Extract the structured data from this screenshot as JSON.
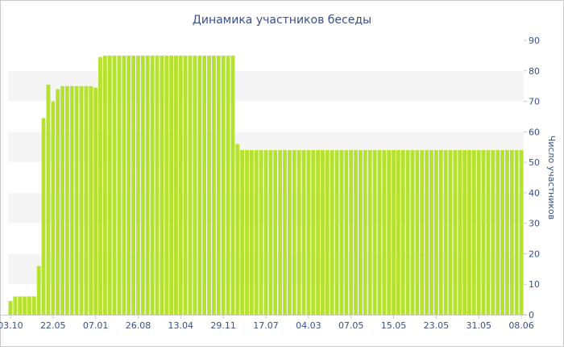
{
  "chart_data": {
    "type": "bar",
    "title": "Динамика участников беседы",
    "xlabel": "",
    "ylabel": "Число участников",
    "ylim": [
      0,
      90
    ],
    "y_ticks": [
      0,
      10,
      20,
      30,
      40,
      50,
      60,
      70,
      80,
      90
    ],
    "y_axis_position": "right",
    "grid": "alternating horizontal bands",
    "bar_color": "#b5e22e",
    "band_color": "#f5f5f5",
    "text_color": "#3a4f8a",
    "x_tick_labels": [
      {
        "index": 0,
        "label": "03.10"
      },
      {
        "index": 9,
        "label": "22.05"
      },
      {
        "index": 18,
        "label": "07.01"
      },
      {
        "index": 27,
        "label": "26.08"
      },
      {
        "index": 36,
        "label": "13.04"
      },
      {
        "index": 45,
        "label": "29.11"
      },
      {
        "index": 54,
        "label": "17.07"
      },
      {
        "index": 63,
        "label": "04.03"
      },
      {
        "index": 72,
        "label": "07.05"
      },
      {
        "index": 81,
        "label": "15.05"
      },
      {
        "index": 90,
        "label": "23.05"
      },
      {
        "index": 99,
        "label": "31.05"
      },
      {
        "index": 108,
        "label": "08.06"
      }
    ],
    "values": [
      4.5,
      6,
      6,
      6,
      6,
      6,
      16,
      64.5,
      75.5,
      70,
      74,
      75,
      75,
      75,
      75,
      75,
      75,
      75,
      74.5,
      84.5,
      85,
      85,
      85,
      85,
      85,
      85,
      85,
      85,
      85,
      85,
      85,
      85,
      85,
      85,
      85,
      85,
      85,
      85,
      85,
      85,
      85,
      85,
      85,
      85,
      85,
      85,
      85,
      85,
      56,
      54,
      54,
      54,
      54,
      54,
      54,
      54,
      54,
      54,
      54,
      54,
      54,
      54,
      54,
      54,
      54,
      54,
      54,
      54,
      54,
      54,
      54,
      54,
      54,
      54,
      54,
      54,
      54,
      54,
      54,
      54,
      54,
      54,
      54,
      54,
      54,
      54,
      54,
      54,
      54,
      54,
      54,
      54,
      54,
      54,
      54,
      54,
      54,
      54,
      54,
      54,
      54,
      54,
      54,
      54,
      54,
      54,
      54,
      54,
      54
    ]
  }
}
